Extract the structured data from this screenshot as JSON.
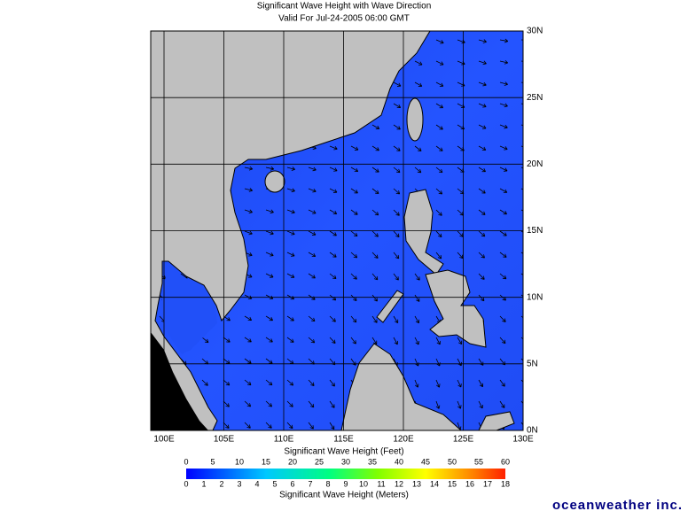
{
  "header": {
    "title": "Significant Wave Height with Wave Direction",
    "subtitle": "Valid For Jul-24-2005 06:00 GMT"
  },
  "map": {
    "lon_labels": [
      "100E",
      "105E",
      "110E",
      "115E",
      "120E",
      "125E",
      "130E"
    ],
    "lat_labels": [
      "30N",
      "25N",
      "20N",
      "15N",
      "10N",
      "5N",
      "0N"
    ]
  },
  "colorbar": {
    "feet_title": "Significant Wave Height (Feet)",
    "feet_labels": [
      "0",
      "5",
      "10",
      "15",
      "20",
      "25",
      "30",
      "35",
      "40",
      "45",
      "50",
      "55",
      "60"
    ],
    "meters_labels": [
      "0",
      "1",
      "2",
      "3",
      "4",
      "5",
      "6",
      "7",
      "8",
      "9",
      "10",
      "11",
      "12",
      "13",
      "14",
      "15",
      "16",
      "17",
      "18"
    ],
    "meters_title": "Significant Wave Height (Meters)"
  },
  "logo": "oceanweather inc."
}
